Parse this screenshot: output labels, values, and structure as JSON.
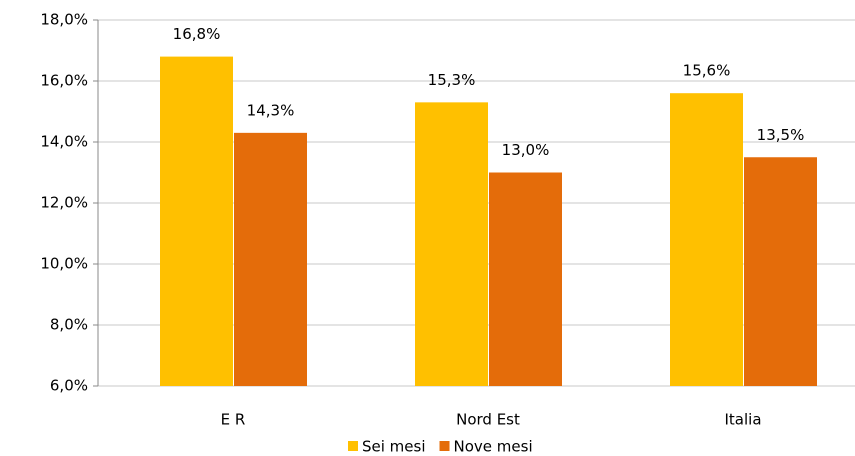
{
  "chart_data": {
    "type": "bar",
    "categories": [
      "E R",
      "Nord Est",
      "Italia"
    ],
    "series": [
      {
        "name": "Sei mesi",
        "color": "#ffc000",
        "values": [
          16.8,
          15.3,
          15.6
        ],
        "value_labels": [
          "16,8%",
          "15,3%",
          "15,6%"
        ]
      },
      {
        "name": "Nove mesi",
        "color": "#e46c0a",
        "values": [
          14.3,
          13.0,
          13.5
        ],
        "value_labels": [
          "14,3%",
          "13,0%",
          "13,5%"
        ]
      }
    ],
    "ylim": [
      6,
      18
    ],
    "yticks": [
      {
        "value": 6,
        "label": "6,0%"
      },
      {
        "value": 8,
        "label": "8,0%"
      },
      {
        "value": 10,
        "label": "10,0%"
      },
      {
        "value": 12,
        "label": "12,0%"
      },
      {
        "value": 14,
        "label": "14,0%"
      },
      {
        "value": 16,
        "label": "16,0%"
      },
      {
        "value": 18,
        "label": "18,0%"
      }
    ],
    "grid": true,
    "legend": "bottom"
  }
}
